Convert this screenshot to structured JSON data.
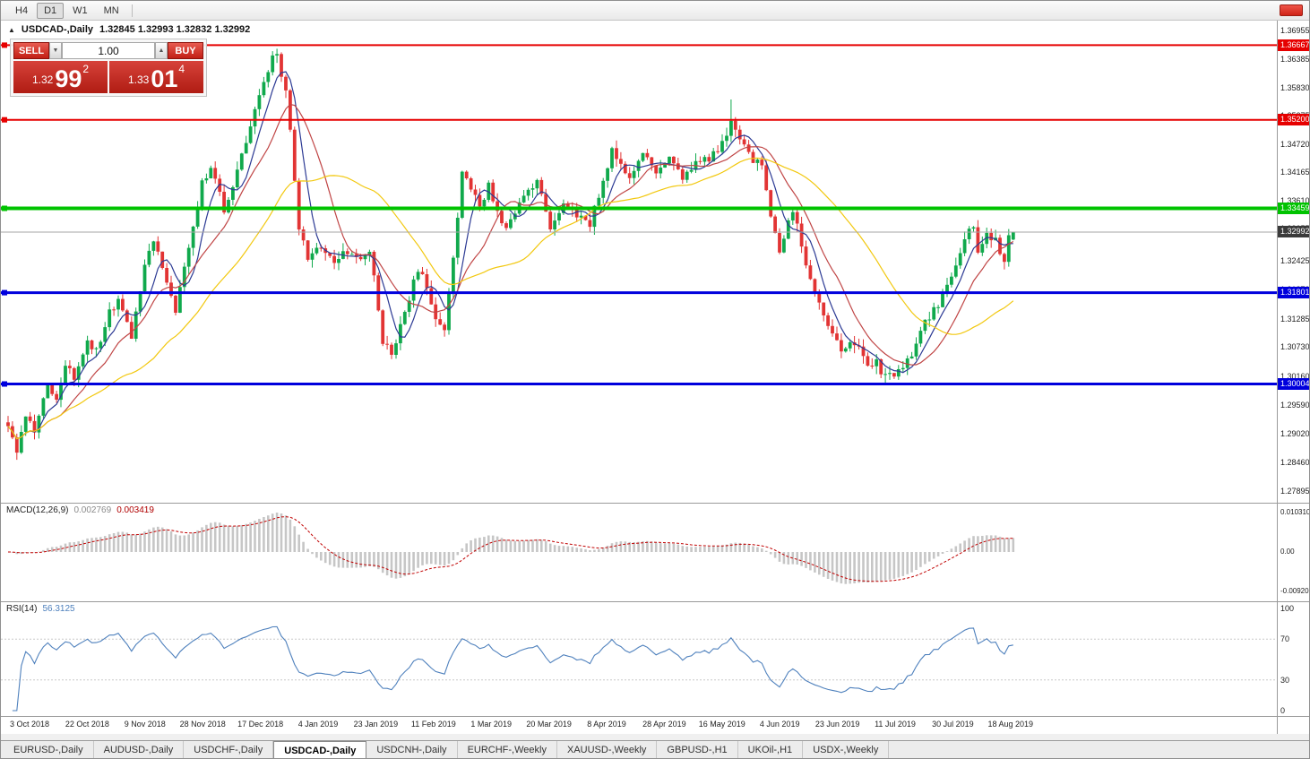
{
  "toolbar": {
    "timeframes": [
      {
        "label": "H4",
        "active": false
      },
      {
        "label": "D1",
        "active": true
      },
      {
        "label": "W1",
        "active": false
      },
      {
        "label": "MN",
        "active": false
      }
    ]
  },
  "alert_color": "#d92b1f",
  "chart": {
    "title": {
      "collapse_icon": "▲",
      "symbol_period": "USDCAD-,Daily",
      "ohlc": "1.32845 1.32993 1.32832 1.32992"
    },
    "one_click": {
      "sell_label": "SELL",
      "buy_label": "BUY",
      "volume": "1.00",
      "volume_down_icon": "▼",
      "volume_up_icon": "▲",
      "bid": {
        "prefix": "1.32",
        "big": "99",
        "sup": "2"
      },
      "ask": {
        "prefix": "1.33",
        "big": "01",
        "sup": "4"
      }
    }
  },
  "chart_data": {
    "type": "candlestick",
    "symbol": "USDCAD",
    "period": "Daily",
    "last": {
      "open": 1.32845,
      "high": 1.32993,
      "low": 1.32832,
      "close": 1.32992
    },
    "ylim": [
      1.2767,
      1.3715
    ],
    "y_ticks": [
      "1.36955",
      "1.36385",
      "1.35830",
      "1.35275",
      "1.34720",
      "1.34165",
      "1.33610",
      "1.33055",
      "1.32425",
      "1.31870",
      "1.31285",
      "1.30730",
      "1.30160",
      "1.29590",
      "1.29020",
      "1.28460",
      "1.27895"
    ],
    "x_labels": [
      "3 Oct 2018",
      "22 Oct 2018",
      "9 Nov 2018",
      "28 Nov 2018",
      "17 Dec 2018",
      "4 Jan 2019",
      "23 Jan 2019",
      "11 Feb 2019",
      "1 Mar 2019",
      "20 Mar 2019",
      "8 Apr 2019",
      "28 Apr 2019",
      "16 May 2019",
      "4 Jun 2019",
      "23 Jun 2019",
      "11 Jul 2019",
      "30 Jul 2019",
      "18 Aug 2019"
    ],
    "levels": [
      {
        "value": 1.36667,
        "label": "1.36667",
        "color": "#e60000",
        "width": 2
      },
      {
        "value": 1.352,
        "label": "1.35200",
        "color": "#e60000",
        "width": 2
      },
      {
        "value": 1.33459,
        "label": "1.33459",
        "color": "#00c300",
        "width": 4
      },
      {
        "value": 1.31801,
        "label": "1.31801",
        "color": "#0000dd",
        "width": 3
      },
      {
        "value": 1.30004,
        "label": "1.30004",
        "color": "#0000dd",
        "width": 3
      }
    ],
    "current_price": {
      "value": 1.32992,
      "label": "1.32992",
      "line_color": "#a6a6a6",
      "box_color": "#3a3a3a"
    },
    "bar_count": 229,
    "up_color": "#10a94c",
    "down_color": "#e23434",
    "moving_averages": [
      {
        "period": 6,
        "color": "#2c3a94"
      },
      {
        "period": 13,
        "color": "#c04545"
      },
      {
        "period": 34,
        "color": "#f2c80f"
      }
    ],
    "macd_histogram_color": "#c6c6c6",
    "macd_signal_color": "#c00000",
    "rsi_color": "#4f81bd",
    "path_anchors": [
      [
        0,
        1.2925
      ],
      [
        2,
        1.2862
      ],
      [
        4,
        1.294
      ],
      [
        6,
        1.291
      ],
      [
        9,
        1.2995
      ],
      [
        11,
        1.297
      ],
      [
        13,
        1.304
      ],
      [
        15,
        1.301
      ],
      [
        18,
        1.309
      ],
      [
        20,
        1.3065
      ],
      [
        23,
        1.314
      ],
      [
        25,
        1.3165
      ],
      [
        28,
        1.3095
      ],
      [
        31,
        1.324
      ],
      [
        33,
        1.3285
      ],
      [
        35,
        1.322
      ],
      [
        38,
        1.3146
      ],
      [
        41,
        1.327
      ],
      [
        44,
        1.3395
      ],
      [
        46,
        1.343
      ],
      [
        49,
        1.334
      ],
      [
        51,
        1.339
      ],
      [
        53,
        1.3445
      ],
      [
        56,
        1.3535
      ],
      [
        58,
        1.36
      ],
      [
        60,
        1.364
      ],
      [
        61,
        1.3645
      ],
      [
        63,
        1.3575
      ],
      [
        64,
        1.35
      ],
      [
        66,
        1.331
      ],
      [
        68,
        1.3245
      ],
      [
        71,
        1.3272
      ],
      [
        74,
        1.3235
      ],
      [
        77,
        1.3262
      ],
      [
        80,
        1.324
      ],
      [
        82,
        1.3268
      ],
      [
        85,
        1.308
      ],
      [
        87,
        1.3062
      ],
      [
        90,
        1.314
      ],
      [
        92,
        1.32
      ],
      [
        94,
        1.3225
      ],
      [
        97,
        1.3122
      ],
      [
        99,
        1.3105
      ],
      [
        101,
        1.324
      ],
      [
        103,
        1.342
      ],
      [
        105,
        1.339
      ],
      [
        107,
        1.335
      ],
      [
        109,
        1.339
      ],
      [
        111,
        1.334
      ],
      [
        113,
        1.33
      ],
      [
        115,
        1.334
      ],
      [
        118,
        1.3375
      ],
      [
        120,
        1.3405
      ],
      [
        123,
        1.331
      ],
      [
        126,
        1.335
      ],
      [
        129,
        1.333
      ],
      [
        132,
        1.3315
      ],
      [
        135,
        1.34
      ],
      [
        137,
        1.346
      ],
      [
        139,
        1.3425
      ],
      [
        141,
        1.3405
      ],
      [
        144,
        1.345
      ],
      [
        147,
        1.3415
      ],
      [
        150,
        1.344
      ],
      [
        153,
        1.3405
      ],
      [
        156,
        1.343
      ],
      [
        159,
        1.3445
      ],
      [
        162,
        1.347
      ],
      [
        164,
        1.3512
      ],
      [
        166,
        1.3478
      ],
      [
        168,
        1.345
      ],
      [
        171,
        1.3432
      ],
      [
        173,
        1.333
      ],
      [
        175,
        1.3258
      ],
      [
        178,
        1.3342
      ],
      [
        180,
        1.3272
      ],
      [
        182,
        1.3212
      ],
      [
        184,
        1.3152
      ],
      [
        186,
        1.3122
      ],
      [
        189,
        1.306
      ],
      [
        191,
        1.3078
      ],
      [
        193,
        1.307
      ],
      [
        195,
        1.3045
      ],
      [
        197,
        1.304
      ],
      [
        199,
        1.3012
      ],
      [
        201,
        1.302
      ],
      [
        203,
        1.3038
      ],
      [
        205,
        1.3062
      ],
      [
        207,
        1.3108
      ],
      [
        209,
        1.3132
      ],
      [
        211,
        1.3158
      ],
      [
        213,
        1.3198
      ],
      [
        215,
        1.3238
      ],
      [
        217,
        1.3292
      ],
      [
        219,
        1.3312
      ],
      [
        220,
        1.3262
      ],
      [
        222,
        1.3302
      ],
      [
        224,
        1.3282
      ],
      [
        226,
        1.3242
      ],
      [
        227,
        1.3284
      ],
      [
        228,
        1.32992
      ]
    ],
    "spikes": [
      {
        "i": 60,
        "h": 1.3655
      },
      {
        "i": 164,
        "h": 1.356
      },
      {
        "i": 199,
        "l": 1.2999
      }
    ],
    "indicators": [
      {
        "label": "MACD(12,26,9)",
        "value_main": "0.002769",
        "value_signal": "0.003419",
        "scale_top": "0.0103105",
        "scale_mid": "0.00",
        "scale_bottom": "-0.0092003"
      },
      {
        "label": "RSI(14)",
        "value": "56.3125",
        "scale": [
          "100",
          "70",
          "30",
          "0"
        ],
        "levels": [
          70,
          30
        ]
      }
    ]
  },
  "tabs": [
    {
      "label": "EURUSD-,Daily",
      "active": false
    },
    {
      "label": "AUDUSD-,Daily",
      "active": false
    },
    {
      "label": "USDCHF-,Daily",
      "active": false
    },
    {
      "label": "USDCAD-,Daily",
      "active": true
    },
    {
      "label": "USDCNH-,Daily",
      "active": false
    },
    {
      "label": "EURCHF-,Weekly",
      "active": false
    },
    {
      "label": "XAUUSD-,Weekly",
      "active": false
    },
    {
      "label": "GBPUSD-,H1",
      "active": false
    },
    {
      "label": "UKOil-,H1",
      "active": false
    },
    {
      "label": "USDX-,Weekly",
      "active": false
    }
  ]
}
